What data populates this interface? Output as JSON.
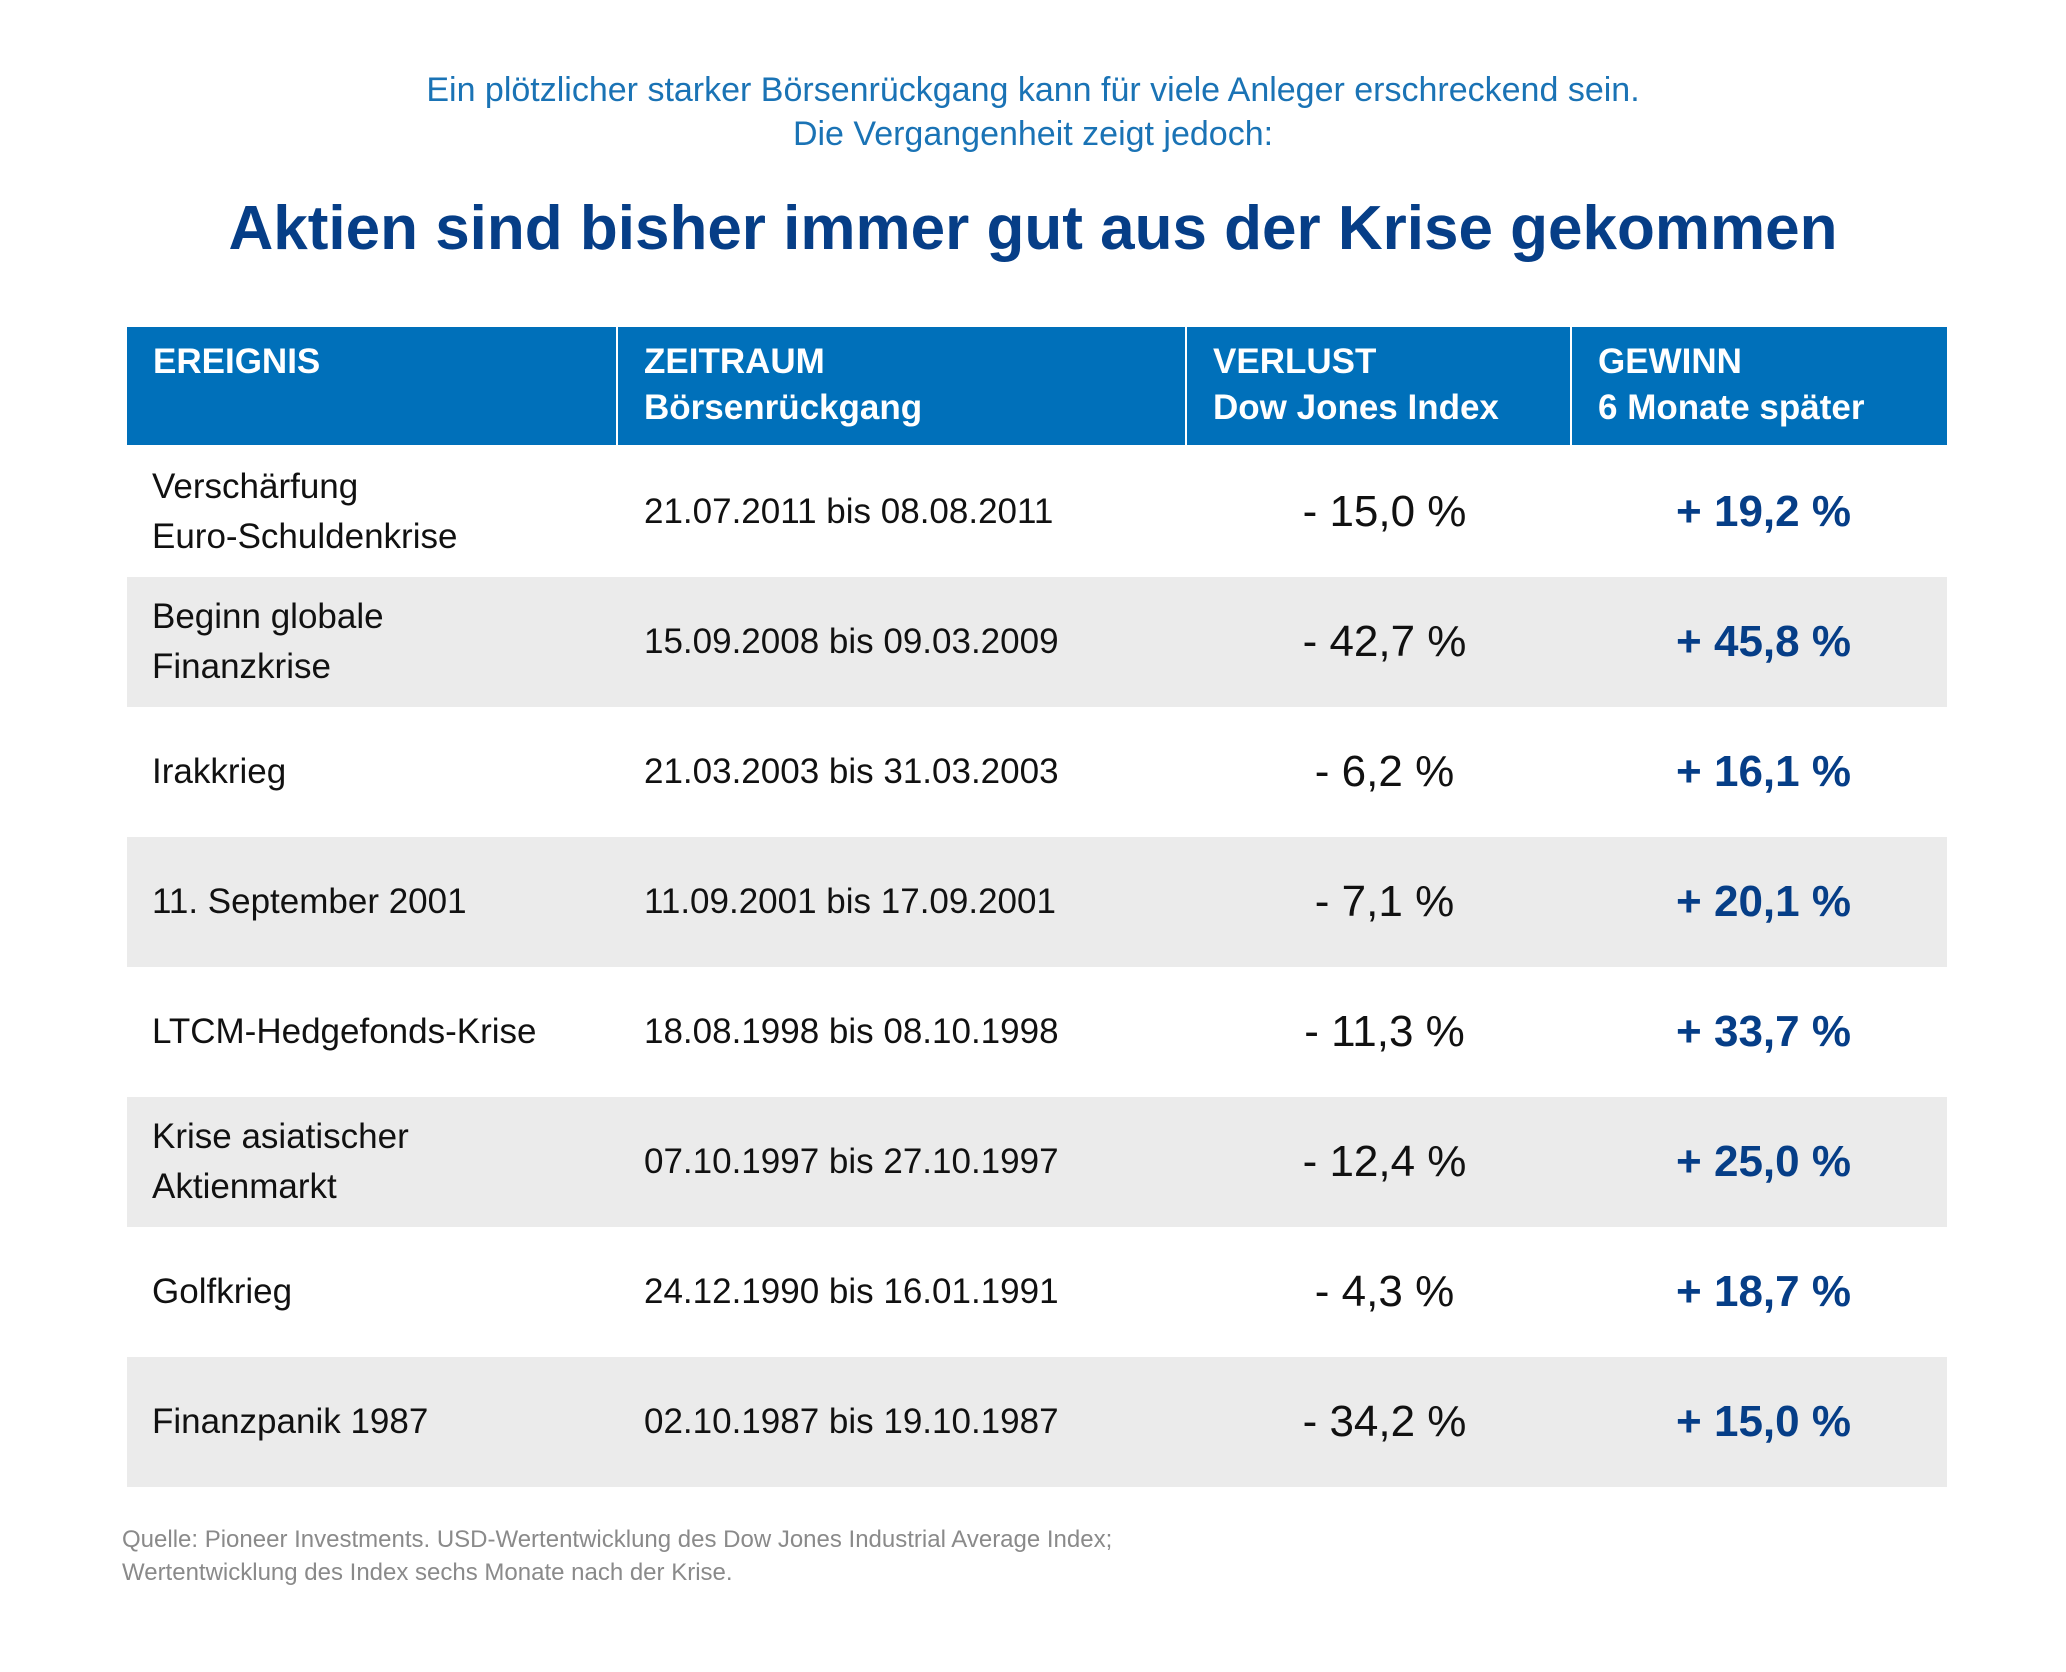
{
  "intro": {
    "line1": "Ein plötzlicher starker Börsenrückgang kann für viele Anleger erschreckend sein.",
    "line2": "Die Vergangenheit zeigt jedoch:"
  },
  "headline": "Aktien sind bisher immer gut aus der Krise gekommen",
  "table": {
    "headers": [
      {
        "line1": "EREIGNIS",
        "line2": ""
      },
      {
        "line1": "ZEITRAUM",
        "line2": "Börsenrückgang"
      },
      {
        "line1": "VERLUST",
        "line2": "Dow Jones Index"
      },
      {
        "line1": "GEWINN",
        "line2": "6 Monate später"
      }
    ],
    "rows": [
      {
        "event1": "Verschärfung",
        "event2": "Euro-Schuldenkrise",
        "period": "21.07.2011 bis 08.08.2011",
        "loss": "- 15,0 %",
        "gain": "+ 19,2 %"
      },
      {
        "event1": "Beginn globale",
        "event2": "Finanzkrise",
        "period": "15.09.2008 bis 09.03.2009",
        "loss": "- 42,7 %",
        "gain": "+ 45,8 %"
      },
      {
        "event1": "Irakkrieg",
        "event2": "",
        "period": "21.03.2003 bis 31.03.2003",
        "loss": "- 6,2 %",
        "gain": "+ 16,1 %"
      },
      {
        "event1": "11. September 2001",
        "event2": "",
        "period": "11.09.2001 bis 17.09.2001",
        "loss": "- 7,1 %",
        "gain": "+ 20,1 %"
      },
      {
        "event1": "LTCM-Hedgefonds-Krise",
        "event2": "",
        "period": "18.08.1998 bis 08.10.1998",
        "loss": "- 11,3 %",
        "gain": "+ 33,7 %"
      },
      {
        "event1": "Krise asiatischer",
        "event2": "Aktienmarkt",
        "period": "07.10.1997 bis 27.10.1997",
        "loss": "- 12,4 %",
        "gain": "+ 25,0 %"
      },
      {
        "event1": "Golfkrieg",
        "event2": "",
        "period": "24.12.1990 bis 16.01.1991",
        "loss": "- 4,3 %",
        "gain": "+ 18,7 %"
      },
      {
        "event1": "Finanzpanik 1987",
        "event2": "",
        "period": "02.10.1987 bis 19.10.1987",
        "loss": "- 34,2 %",
        "gain": "+ 15,0 %"
      }
    ]
  },
  "source": {
    "line1": "Quelle: Pioneer Investments. USD-Wertentwicklung des Dow Jones Industrial Average Index;",
    "line2": "Wertentwicklung des Index sechs Monate nach der Krise."
  },
  "colors": {
    "intro_text": "#1a73b5",
    "headline_text": "#063e87",
    "header_background": "#0070ba",
    "shaded_row": "#ebebeb",
    "gain_text": "#063e87",
    "source_text": "#8a8a8a"
  },
  "chart_data": {
    "type": "table",
    "columns": [
      "EREIGNIS",
      "ZEITRAUM Börsenrückgang",
      "VERLUST Dow Jones Index",
      "GEWINN 6 Monate später"
    ],
    "rows": [
      [
        "Verschärfung Euro-Schuldenkrise",
        "21.07.2011 bis 08.08.2011",
        -15.0,
        19.2
      ],
      [
        "Beginn globale Finanzkrise",
        "15.09.2008 bis 09.03.2009",
        -42.7,
        45.8
      ],
      [
        "Irakkrieg",
        "21.03.2003 bis 31.03.2003",
        -6.2,
        16.1
      ],
      [
        "11. September 2001",
        "11.09.2001 bis 17.09.2001",
        -7.1,
        20.1
      ],
      [
        "LTCM-Hedgefonds-Krise",
        "18.08.1998 bis 08.10.1998",
        -11.3,
        33.7
      ],
      [
        "Krise asiatischer Aktienmarkt",
        "07.10.1997 bis 27.10.1997",
        -12.4,
        25.0
      ],
      [
        "Golfkrieg",
        "24.12.1990 bis 16.01.1991",
        -4.3,
        18.7
      ],
      [
        "Finanzpanik 1987",
        "02.10.1987 bis 19.10.1987",
        -34.2,
        15.0
      ]
    ]
  }
}
